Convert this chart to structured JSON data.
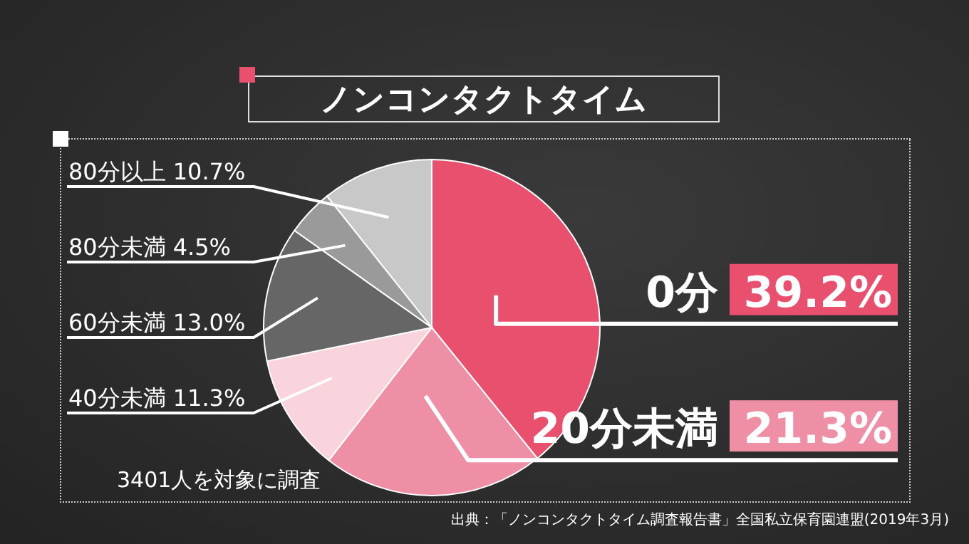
{
  "chart_data": {
    "type": "pie",
    "title": "ノンコンタクトタイム",
    "categories": [
      "0分",
      "20分未満",
      "40分未満",
      "60分未満",
      "80分未満",
      "80分以上"
    ],
    "values": [
      39.2,
      21.3,
      11.3,
      13.0,
      4.5,
      10.7
    ],
    "value_labels": [
      "39.2%",
      "21.3%",
      "11.3%",
      "13.0%",
      "4.5%",
      "10.7%"
    ],
    "colors": [
      "#e8506e",
      "#ee8fa5",
      "#f9d4dc",
      "#666666",
      "#9a9a9a",
      "#c8c8c8"
    ],
    "annotations": [
      "3401人を対象に調査",
      "出典：「ノンコンタクトタイム調査報告書」全国私立保育園連盟(2019年3月)"
    ]
  }
}
